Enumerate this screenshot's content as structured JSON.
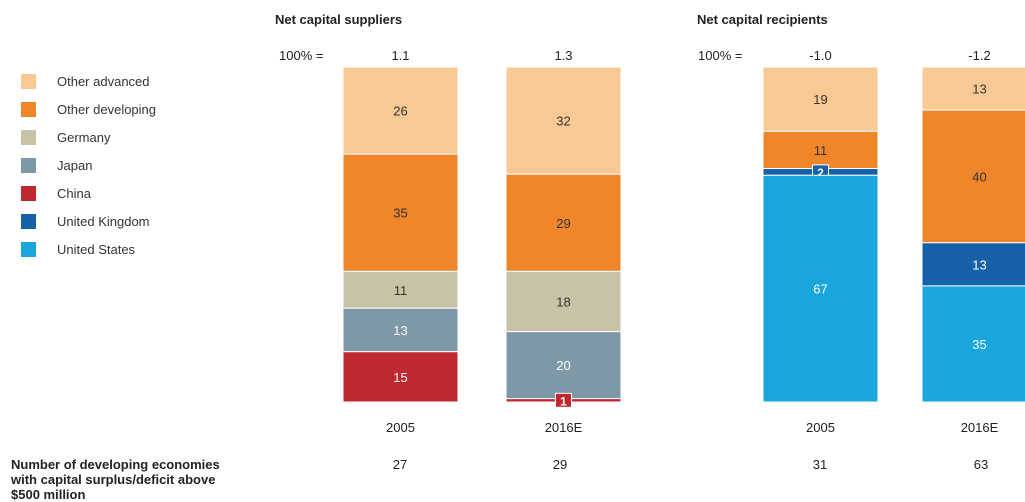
{
  "chart_data": {
    "type": "bar",
    "stacked": true,
    "percent_label": "100% =",
    "legend": {
      "placement": "left",
      "items": [
        {
          "name": "Other advanced",
          "color": "#F9C994"
        },
        {
          "name": "Other developing",
          "color": "#F0862A"
        },
        {
          "name": "Germany",
          "color": "#C7C3A6"
        },
        {
          "name": "Japan",
          "color": "#7F98A8"
        },
        {
          "name": "China",
          "color": "#C0282F"
        },
        {
          "name": "United Kingdom",
          "color": "#1761A8"
        },
        {
          "name": "United States",
          "color": "#19A6DD"
        }
      ]
    },
    "groups": [
      {
        "title": "Net capital suppliers",
        "bars": [
          {
            "category": "2005",
            "total": "1.1",
            "segments": [
              {
                "series": "Other advanced",
                "value": 26
              },
              {
                "series": "Other developing",
                "value": 35
              },
              {
                "series": "Germany",
                "value": 11
              },
              {
                "series": "Japan",
                "value": 13
              },
              {
                "series": "China",
                "value": 15
              }
            ]
          },
          {
            "category": "2016E",
            "total": "1.3",
            "segments": [
              {
                "series": "Other advanced",
                "value": 32
              },
              {
                "series": "Other developing",
                "value": 29
              },
              {
                "series": "Germany",
                "value": 18
              },
              {
                "series": "Japan",
                "value": 20
              },
              {
                "series": "China",
                "value": 1
              }
            ]
          }
        ]
      },
      {
        "title": "Net capital recipients",
        "bars": [
          {
            "category": "2005",
            "total": "-1.0",
            "segments": [
              {
                "series": "Other advanced",
                "value": 19
              },
              {
                "series": "Other developing",
                "value": 11
              },
              {
                "series": "United Kingdom",
                "value": 2
              },
              {
                "series": "United States",
                "value": 67
              }
            ]
          },
          {
            "category": "2016E",
            "total": "-1.2",
            "segments": [
              {
                "series": "Other advanced",
                "value": 13
              },
              {
                "series": "Other developing",
                "value": 40
              },
              {
                "series": "United Kingdom",
                "value": 13
              },
              {
                "series": "United States",
                "value": 35
              }
            ]
          }
        ]
      }
    ],
    "footer": {
      "label_lines": [
        "Number of developing economies",
        "with capital surplus/deficit above",
        "$500 million"
      ],
      "values": [
        "27",
        "29",
        "31",
        "63"
      ]
    }
  }
}
